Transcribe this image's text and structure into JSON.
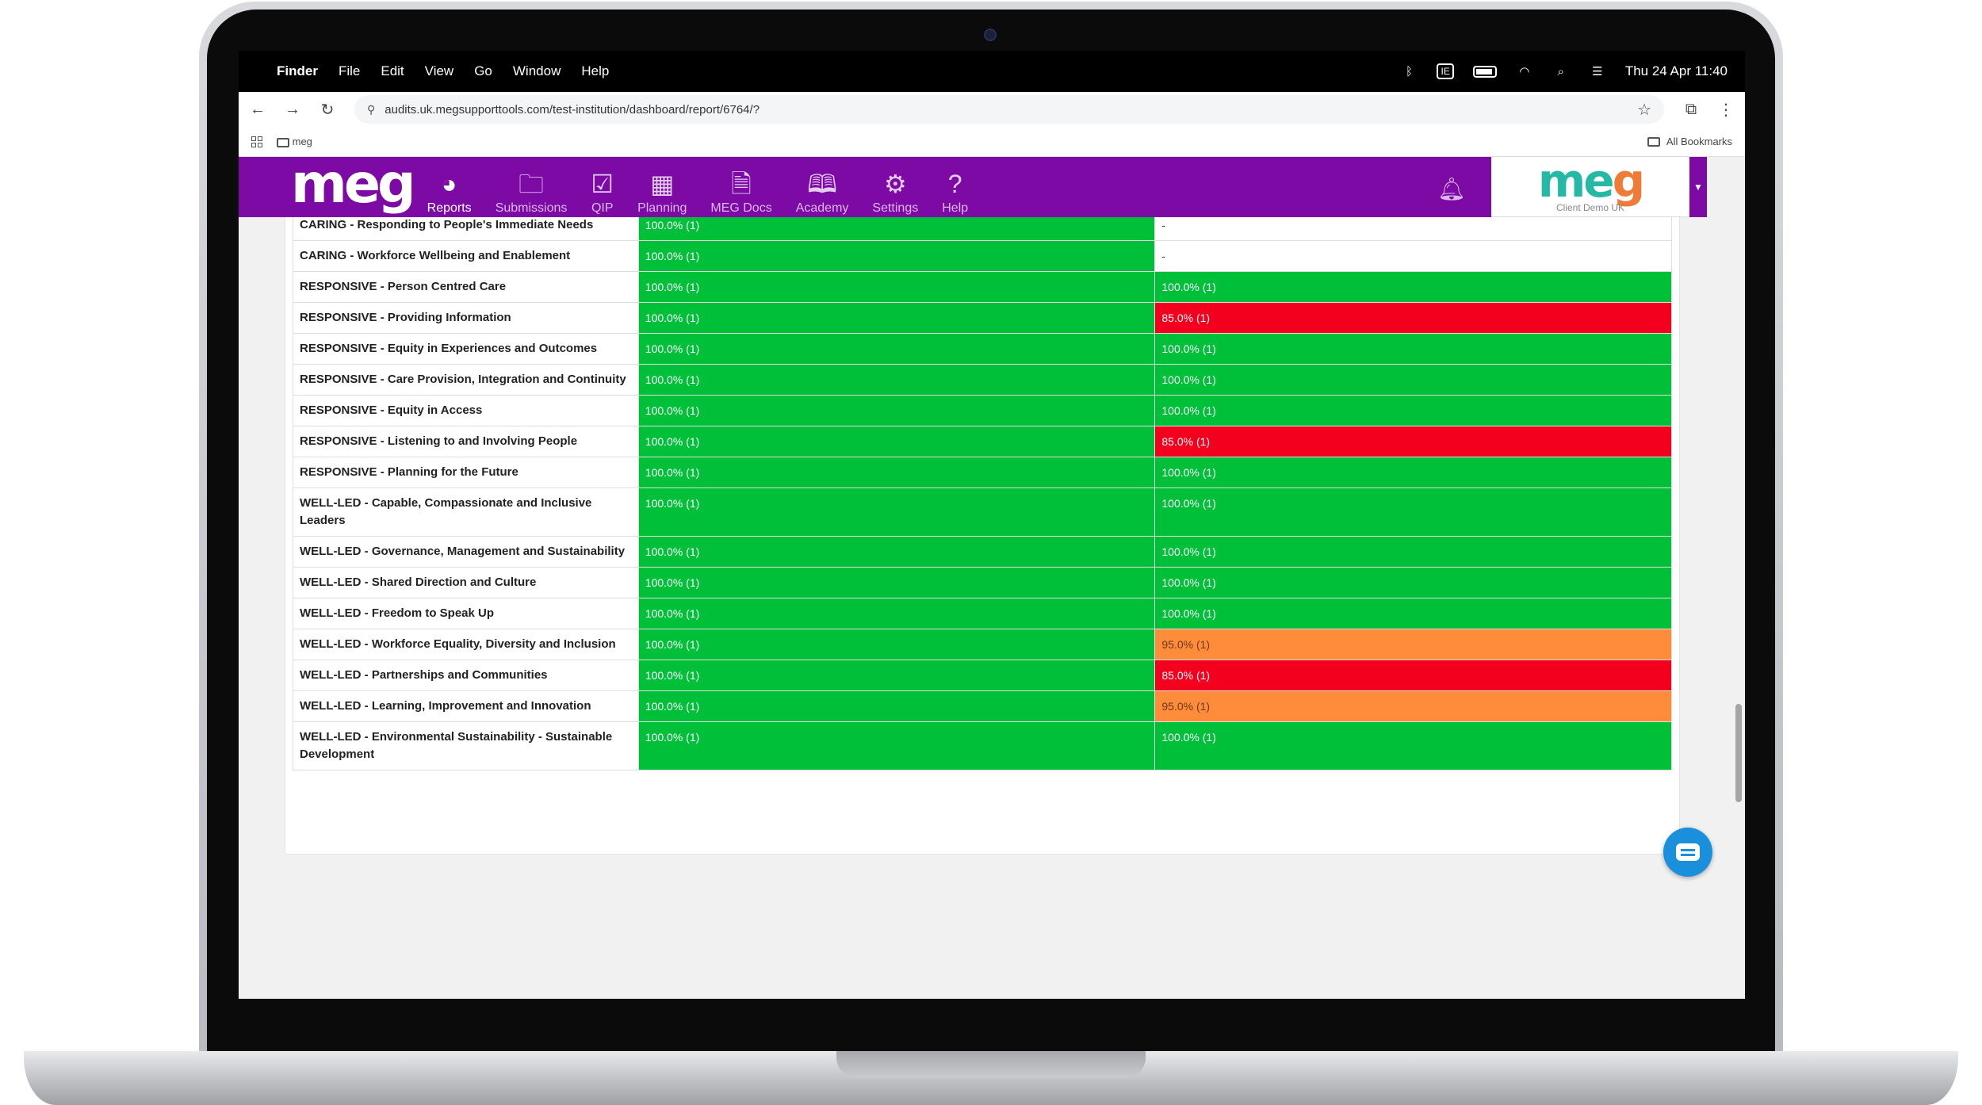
{
  "menubar": {
    "app": "Finder",
    "items": [
      "File",
      "Edit",
      "View",
      "Go",
      "Window",
      "Help"
    ],
    "input_source": "IE",
    "clock": "Thu 24 Apr  11:40"
  },
  "browser": {
    "url": "audits.uk.megsupporttools.com/test-institution/dashboard/report/6764/?",
    "bookmark": "meg",
    "all_bookmarks": "All Bookmarks"
  },
  "app": {
    "logo": "meg",
    "nav": [
      {
        "label": "Reports",
        "icon": "pie-chart-icon",
        "glyph": "◕"
      },
      {
        "label": "Submissions",
        "icon": "folder-icon",
        "glyph": "🗀"
      },
      {
        "label": "QIP",
        "icon": "checkbox-icon",
        "glyph": "☑"
      },
      {
        "label": "Planning",
        "icon": "calendar-icon",
        "glyph": "▦"
      },
      {
        "label": "MEG Docs",
        "icon": "document-icon",
        "glyph": "🗎"
      },
      {
        "label": "Academy",
        "icon": "book-icon",
        "glyph": "🕮"
      },
      {
        "label": "Settings",
        "icon": "gear-icon",
        "glyph": "⚙"
      },
      {
        "label": "Help",
        "icon": "help-icon",
        "glyph": "?"
      }
    ],
    "client_logo": "meg",
    "client_name": "Client Demo UK"
  },
  "colors": {
    "green": "#00c03a",
    "red": "#f2001e",
    "orange": "#ff8c3a",
    "purple": "#7e0aa6"
  },
  "rows": [
    {
      "label": "CARING - Responding to People's Immediate Needs",
      "a": "100.0% (1)",
      "ac": "green",
      "b": "-",
      "bc": "white"
    },
    {
      "label": "CARING - Workforce Wellbeing and Enablement",
      "a": "100.0% (1)",
      "ac": "green",
      "b": "-",
      "bc": "white"
    },
    {
      "label": "RESPONSIVE - Person Centred Care",
      "a": "100.0% (1)",
      "ac": "green",
      "b": "100.0% (1)",
      "bc": "green"
    },
    {
      "label": "RESPONSIVE - Providing Information",
      "a": "100.0% (1)",
      "ac": "green",
      "b": "85.0% (1)",
      "bc": "red"
    },
    {
      "label": "RESPONSIVE - Equity in Experiences and Outcomes",
      "a": "100.0% (1)",
      "ac": "green",
      "b": "100.0% (1)",
      "bc": "green"
    },
    {
      "label": "RESPONSIVE - Care Provision, Integration and Continuity",
      "a": "100.0% (1)",
      "ac": "green",
      "b": "100.0% (1)",
      "bc": "green"
    },
    {
      "label": "RESPONSIVE - Equity in Access",
      "a": "100.0% (1)",
      "ac": "green",
      "b": "100.0% (1)",
      "bc": "green"
    },
    {
      "label": "RESPONSIVE - Listening to and Involving People",
      "a": "100.0% (1)",
      "ac": "green",
      "b": "85.0% (1)",
      "bc": "red"
    },
    {
      "label": "RESPONSIVE - Planning for the Future",
      "a": "100.0% (1)",
      "ac": "green",
      "b": "100.0% (1)",
      "bc": "green"
    },
    {
      "label": "WELL-LED - Capable, Compassionate and Inclusive Leaders",
      "a": "100.0% (1)",
      "ac": "green",
      "b": "100.0% (1)",
      "bc": "green"
    },
    {
      "label": "WELL-LED - Governance, Management and Sustainability",
      "a": "100.0% (1)",
      "ac": "green",
      "b": "100.0% (1)",
      "bc": "green"
    },
    {
      "label": "WELL-LED - Shared Direction and Culture",
      "a": "100.0% (1)",
      "ac": "green",
      "b": "100.0% (1)",
      "bc": "green"
    },
    {
      "label": "WELL-LED - Freedom to Speak Up",
      "a": "100.0% (1)",
      "ac": "green",
      "b": "100.0% (1)",
      "bc": "green"
    },
    {
      "label": "WELL-LED - Workforce Equality, Diversity and Inclusion",
      "a": "100.0% (1)",
      "ac": "green",
      "b": "95.0% (1)",
      "bc": "orange"
    },
    {
      "label": "WELL-LED - Partnerships and Communities",
      "a": "100.0% (1)",
      "ac": "green",
      "b": "85.0% (1)",
      "bc": "red"
    },
    {
      "label": "WELL-LED - Learning, Improvement and Innovation",
      "a": "100.0% (1)",
      "ac": "green",
      "b": "95.0% (1)",
      "bc": "orange"
    },
    {
      "label": "WELL-LED - Environmental Sustainability - Sustainable Development",
      "a": "100.0% (1)",
      "ac": "green",
      "b": "100.0% (1)",
      "bc": "green"
    }
  ]
}
